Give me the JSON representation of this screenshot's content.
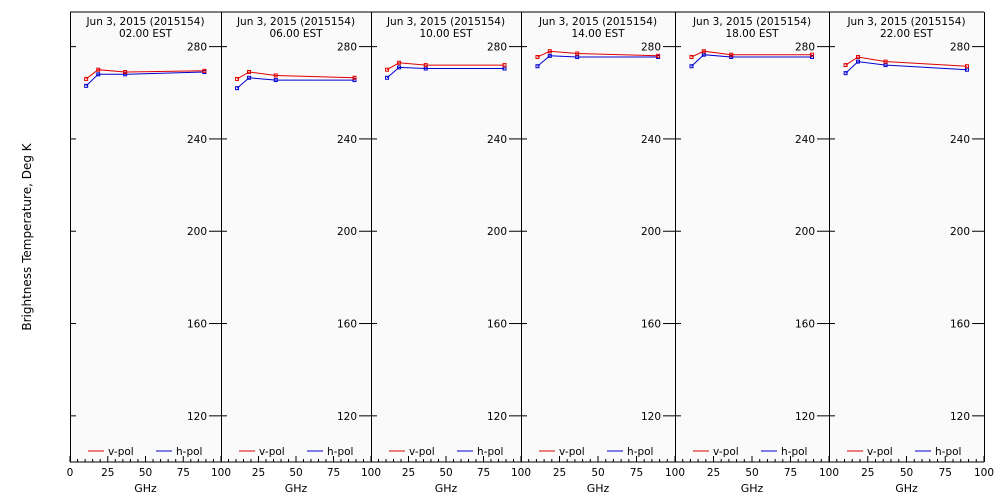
{
  "chart_data": {
    "type": "line",
    "ylabel": "Brightness Temperature, Deg K",
    "xlabel": "GHz",
    "ylim": [
      100,
      295
    ],
    "xlim": [
      0,
      100
    ],
    "yticks": [
      120,
      160,
      200,
      240,
      280
    ],
    "xticks": [
      0,
      25,
      50,
      75,
      100
    ],
    "legend": [
      "v-pol",
      "h-pol"
    ],
    "colors": {
      "v-pol": "#e00000",
      "h-pol": "#0000d0"
    },
    "panels": [
      {
        "title": "Jun  3, 2015 (2015154)",
        "time": "02.00 EST",
        "series": [
          {
            "name": "v-pol",
            "x": [
              10.7,
              18.7,
              36.5,
              89
            ],
            "y": [
              266,
              270,
              269,
              269.5
            ]
          },
          {
            "name": "h-pol",
            "x": [
              10.7,
              18.7,
              36.5,
              89
            ],
            "y": [
              263,
              268,
              268,
              269
            ]
          }
        ]
      },
      {
        "title": "Jun  3, 2015 (2015154)",
        "time": "06.00 EST",
        "series": [
          {
            "name": "v-pol",
            "x": [
              10.7,
              18.7,
              36.5,
              89
            ],
            "y": [
              266,
              269,
              267.5,
              266.5
            ]
          },
          {
            "name": "h-pol",
            "x": [
              10.7,
              18.7,
              36.5,
              89
            ],
            "y": [
              262,
              266.5,
              265.5,
              265.5
            ]
          }
        ]
      },
      {
        "title": "Jun  3, 2015 (2015154)",
        "time": "10.00 EST",
        "series": [
          {
            "name": "v-pol",
            "x": [
              10.7,
              18.7,
              36.5,
              89
            ],
            "y": [
              270,
              273,
              272,
              272
            ]
          },
          {
            "name": "h-pol",
            "x": [
              10.7,
              18.7,
              36.5,
              89
            ],
            "y": [
              266.5,
              271,
              270.5,
              270.5
            ]
          }
        ]
      },
      {
        "title": "Jun  3, 2015 (2015154)",
        "time": "14.00 EST",
        "series": [
          {
            "name": "v-pol",
            "x": [
              10.7,
              18.7,
              36.5,
              89
            ],
            "y": [
              275.5,
              278,
              277,
              276
            ]
          },
          {
            "name": "h-pol",
            "x": [
              10.7,
              18.7,
              36.5,
              89
            ],
            "y": [
              271.5,
              276,
              275.5,
              275.5
            ]
          }
        ]
      },
      {
        "title": "Jun  3, 2015 (2015154)",
        "time": "18.00 EST",
        "series": [
          {
            "name": "v-pol",
            "x": [
              10.7,
              18.7,
              36.5,
              89
            ],
            "y": [
              275.5,
              278,
              276.5,
              276.5
            ]
          },
          {
            "name": "h-pol",
            "x": [
              10.7,
              18.7,
              36.5,
              89
            ],
            "y": [
              271.5,
              276.5,
              275.5,
              275.5
            ]
          }
        ]
      },
      {
        "title": "Jun  3, 2015 (2015154)",
        "time": "22.00 EST",
        "series": [
          {
            "name": "v-pol",
            "x": [
              10.7,
              18.7,
              36.5,
              89
            ],
            "y": [
              272,
              275.5,
              273.5,
              271.5
            ]
          },
          {
            "name": "h-pol",
            "x": [
              10.7,
              18.7,
              36.5,
              89
            ],
            "y": [
              268.5,
              273.5,
              272,
              270
            ]
          }
        ]
      }
    ]
  }
}
